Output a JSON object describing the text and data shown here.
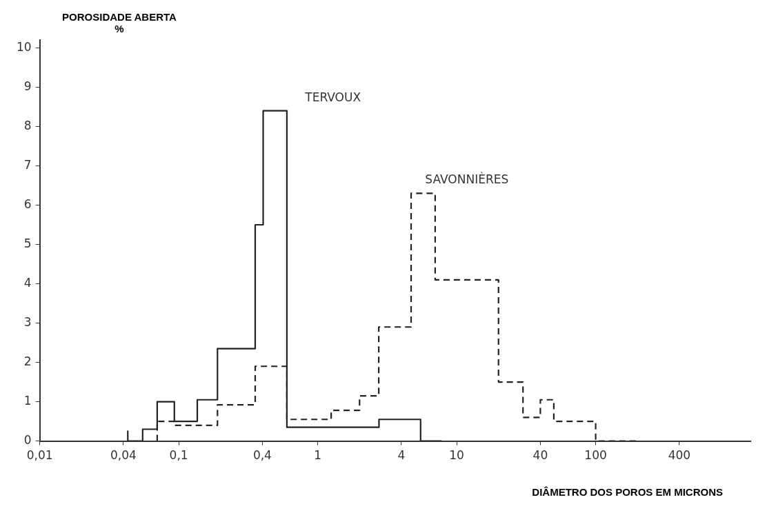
{
  "chart_data": {
    "type": "step",
    "ylabel": "POROSIDADE ABERTA %",
    "xlabel": "DIÂMETRO DOS POROS EM MICRONS",
    "log": "x",
    "xlim": [
      0.01,
      1300
    ],
    "xticks": [
      {
        "value": 0.01,
        "label": "0,01"
      },
      {
        "value": 0.04,
        "label": "0,04"
      },
      {
        "value": 0.1,
        "label": "0,1"
      },
      {
        "value": 0.4,
        "label": "0,4"
      },
      1,
      4,
      10,
      40,
      100,
      400
    ],
    "ylim": [
      0,
      10.2
    ],
    "yticks": [
      0,
      1,
      2,
      3,
      4,
      5,
      6,
      7,
      8,
      9,
      10
    ],
    "grid": false,
    "legend": false,
    "series": [
      {
        "name": "TERVOUX",
        "color": "#222222",
        "line_style": "solid",
        "x": [
          0.043,
          0.043,
          0.055,
          0.07,
          0.093,
          0.136,
          0.19,
          0.355,
          0.405,
          0.6,
          2.76,
          5.5,
          7.8
        ],
        "values": [
          0,
          0.25,
          0,
          0.3,
          1.0,
          0.5,
          1.05,
          2.35,
          5.5,
          8.4,
          0.35,
          0.55,
          0
        ]
      },
      {
        "name": "SAVONNIÈRES",
        "color": "#222222",
        "line_style": "dashed",
        "x": [
          0.07,
          0.07,
          0.093,
          0.19,
          0.355,
          0.6,
          1.25,
          2.0,
          2.75,
          4.7,
          7,
          20,
          30,
          40,
          50,
          100,
          195
        ],
        "values": [
          0,
          0.4,
          0.5,
          0.4,
          0.92,
          1.9,
          0.55,
          0.78,
          1.15,
          2.9,
          6.3,
          4.1,
          1.5,
          0.6,
          1.05,
          0.5,
          0
        ]
      }
    ]
  }
}
